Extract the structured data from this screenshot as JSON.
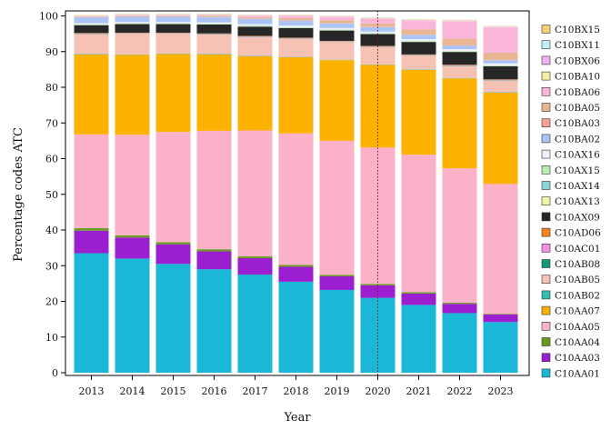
{
  "chart_data": {
    "type": "bar",
    "stacked": true,
    "xlabel": "Year",
    "ylabel": "Percentage codes ATC",
    "ylim": [
      0,
      100
    ],
    "yticks": [
      0,
      10,
      20,
      30,
      40,
      50,
      60,
      70,
      80,
      90,
      100
    ],
    "categories": [
      "2013",
      "2014",
      "2015",
      "2016",
      "2017",
      "2018",
      "2019",
      "2020",
      "2021",
      "2022",
      "2023"
    ],
    "reference_line": {
      "x": "2020",
      "style": "dotted"
    },
    "legend_position": "right",
    "series": [
      {
        "name": "C10AA01",
        "color": "#1ab8d6",
        "values": [
          33.5,
          32.0,
          30.5,
          29.0,
          27.5,
          25.5,
          23.2,
          21.0,
          19.0,
          16.7,
          14.2
        ]
      },
      {
        "name": "C10AA03",
        "color": "#9b1fd1",
        "values": [
          6.3,
          5.9,
          5.5,
          5.0,
          4.6,
          4.2,
          3.8,
          3.5,
          3.2,
          2.6,
          2.1
        ]
      },
      {
        "name": "C10AA04",
        "color": "#6a9a1f",
        "values": [
          0.7,
          0.6,
          0.6,
          0.6,
          0.5,
          0.5,
          0.4,
          0.4,
          0.4,
          0.3,
          0.2
        ]
      },
      {
        "name": "C10AA05",
        "color": "#fbb1c8",
        "values": [
          26.3,
          28.2,
          30.9,
          33.2,
          35.3,
          36.9,
          37.6,
          38.2,
          38.5,
          37.7,
          36.4
        ]
      },
      {
        "name": "C10AA07",
        "color": "#fdb100",
        "values": [
          22.4,
          22.4,
          21.8,
          21.4,
          20.8,
          21.3,
          22.6,
          23.2,
          23.8,
          25.2,
          25.6
        ]
      },
      {
        "name": "C10AB02",
        "color": "#2fbfae",
        "values": [
          0.1,
          0.1,
          0.1,
          0.1,
          0.1,
          0.1,
          0.1,
          0.1,
          0.1,
          0.1,
          0.1
        ]
      },
      {
        "name": "C10AB05",
        "color": "#f6c2b4",
        "values": [
          5.6,
          5.8,
          5.6,
          5.5,
          5.3,
          5.1,
          5.0,
          4.9,
          3.9,
          3.4,
          3.3
        ]
      },
      {
        "name": "C10AB08",
        "color": "#0d9b76",
        "values": [
          0.1,
          0.1,
          0.1,
          0.1,
          0.1,
          0.1,
          0.1,
          0.1,
          0.1,
          0.1,
          0.1
        ]
      },
      {
        "name": "C10AC01",
        "color": "#f78ee6",
        "values": [
          0.1,
          0.1,
          0.1,
          0.1,
          0.1,
          0.1,
          0.1,
          0.1,
          0.1,
          0.1,
          0.1
        ]
      },
      {
        "name": "C10AD06",
        "color": "#f5811f",
        "values": [
          0.1,
          0.1,
          0.1,
          0.1,
          0.1,
          0.1,
          0.1,
          0.1,
          0.1,
          0.1,
          0.1
        ]
      },
      {
        "name": "C10AX09",
        "color": "#262626",
        "values": [
          2.2,
          2.4,
          2.4,
          2.5,
          2.6,
          2.7,
          2.9,
          3.3,
          3.5,
          3.6,
          3.7
        ]
      },
      {
        "name": "C10AX13",
        "color": "#eef5a6",
        "values": [
          0.1,
          0.1,
          0.1,
          0.1,
          0.1,
          0.1,
          0.1,
          0.1,
          0.1,
          0.1,
          0.1
        ]
      },
      {
        "name": "C10AX14",
        "color": "#87d8d4",
        "values": [
          0.1,
          0.1,
          0.1,
          0.1,
          0.1,
          0.1,
          0.1,
          0.1,
          0.1,
          0.1,
          0.1
        ]
      },
      {
        "name": "C10AX15",
        "color": "#b8ecb0",
        "values": [
          0.1,
          0.1,
          0.1,
          0.1,
          0.1,
          0.1,
          0.1,
          0.1,
          0.1,
          0.1,
          0.1
        ]
      },
      {
        "name": "C10AX16",
        "color": "#eeeefa",
        "values": [
          0.3,
          0.3,
          0.3,
          0.3,
          0.4,
          0.4,
          0.4,
          0.4,
          0.5,
          0.5,
          0.5
        ]
      },
      {
        "name": "C10BA02",
        "color": "#a9c4f5",
        "values": [
          1.6,
          1.5,
          1.5,
          1.5,
          1.5,
          1.4,
          1.3,
          1.3,
          1.2,
          1.0,
          0.9
        ]
      },
      {
        "name": "C10BA03",
        "color": "#fb9e97",
        "values": [
          0.1,
          0.1,
          0.1,
          0.1,
          0.1,
          0.1,
          0.1,
          0.1,
          0.1,
          0.1,
          0.1
        ]
      },
      {
        "name": "C10BA05",
        "color": "#e8b691",
        "values": [
          0.1,
          0.2,
          0.2,
          0.3,
          0.3,
          0.6,
          0.8,
          0.9,
          1.4,
          1.8,
          2.0
        ]
      },
      {
        "name": "C10BA06",
        "color": "#f9b6da",
        "values": [
          0.1,
          0.1,
          0.1,
          0.1,
          0.4,
          0.6,
          0.9,
          1.3,
          2.5,
          4.9,
          7.1
        ]
      },
      {
        "name": "C10BA10",
        "color": "#f3ef9e",
        "values": [
          0.1,
          0.1,
          0.1,
          0.1,
          0.1,
          0.1,
          0.1,
          0.1,
          0.1,
          0.1,
          0.1
        ]
      },
      {
        "name": "C10BX06",
        "color": "#f3b1f5",
        "values": [
          0.1,
          0.1,
          0.1,
          0.1,
          0.1,
          0.1,
          0.1,
          0.1,
          0.1,
          0.1,
          0.1
        ]
      },
      {
        "name": "C10BX11",
        "color": "#c3eef3",
        "values": [
          0.1,
          0.1,
          0.1,
          0.1,
          0.1,
          0.1,
          0.1,
          0.1,
          0.1,
          0.1,
          0.1
        ]
      },
      {
        "name": "C10BX15",
        "color": "#f7cf7b",
        "values": [
          0.1,
          0.1,
          0.1,
          0.1,
          0.1,
          0.1,
          0.1,
          0.1,
          0.1,
          0.1,
          0.1
        ]
      }
    ]
  }
}
